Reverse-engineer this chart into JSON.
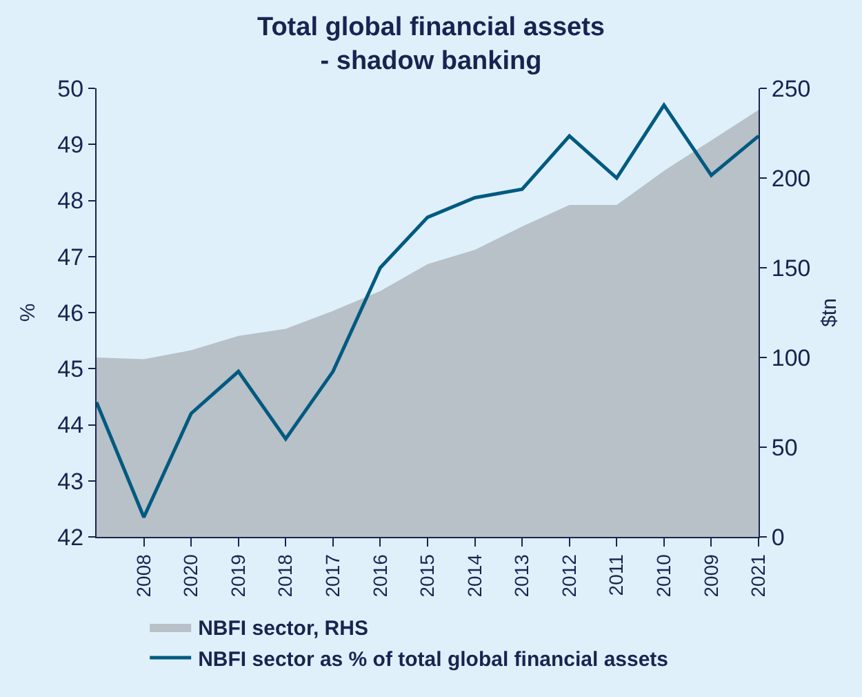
{
  "chart_data": {
    "type": "line",
    "title": "Total global financial assets - shadow banking",
    "categories": [
      null,
      "2008",
      "2020",
      "2019",
      "2018",
      "2017",
      "2016",
      "2015",
      "2014",
      "2013",
      "2012",
      "2011",
      "2010",
      "2009",
      "2021"
    ],
    "series": [
      {
        "name": "NBFI sector, RHS",
        "type": "area",
        "axis": "y2",
        "color": "#b8c0c8",
        "values": [
          100,
          99,
          104,
          112,
          116,
          126,
          137,
          152,
          160,
          173,
          185,
          185,
          204,
          221,
          238
        ]
      },
      {
        "name": "NBFI sector as % of total global financial assets",
        "color": "#005a80",
        "values": [
          44.4,
          42.35,
          44.2,
          44.95,
          43.75,
          44.95,
          46.8,
          47.7,
          48.05,
          48.2,
          49.15,
          48.4,
          49.7,
          48.45,
          49.15
        ]
      }
    ],
    "ylabel": "%",
    "y2label": "$tn",
    "ylim": [
      42,
      50
    ],
    "yticks": [
      42,
      43,
      44,
      45,
      46,
      47,
      48,
      49,
      50
    ],
    "y2lim": [
      0,
      250
    ],
    "y2ticks": [
      0,
      50,
      100,
      150,
      200,
      250
    ],
    "grid": false,
    "legend": "bottom left",
    "marker": "none",
    "line_style": "solid"
  }
}
